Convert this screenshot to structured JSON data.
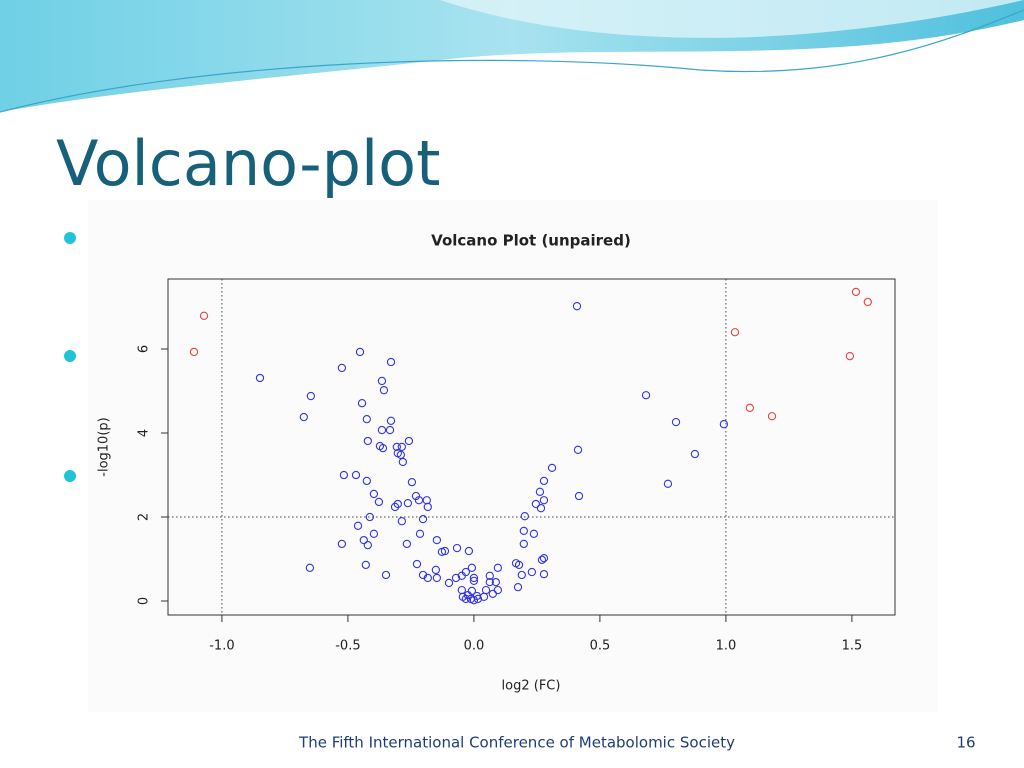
{
  "slide": {
    "title": "Volcano-plot",
    "footer": "The Fifth International Conference of Metabolomic Society",
    "page_number": "16"
  },
  "chart_data": {
    "type": "scatter",
    "title": "Volcano Plot (unpaired)",
    "x_label": "log2 (FC)",
    "y_label": "-log10(p)",
    "xlim": [
      -1.214,
      1.671
    ],
    "ylim": [
      -0.333,
      7.667
    ],
    "xticks": [
      {
        "value": -1,
        "label": "-1.0"
      },
      -0.5,
      {
        "value": 0,
        "label": "0.0"
      },
      0.5,
      {
        "value": 1,
        "label": "1.0"
      },
      1.5
    ],
    "yticks": [
      0,
      2,
      4,
      6
    ],
    "reference_lines": {
      "x": [
        -1,
        1
      ],
      "y": [
        2
      ]
    },
    "series": [
      {
        "color": "#e8413c",
        "x": [
          -1.071,
          -1.111,
          1.516,
          1.563,
          1.036,
          1.492,
          1.095,
          1.183
        ],
        "values": [
          6.79,
          5.93,
          7.36,
          7.12,
          6.4,
          5.83,
          4.6,
          4.4
        ]
      },
      {
        "color": "#3333e6",
        "x": [
          0.409,
          -0.849,
          -0.452,
          -0.329,
          -0.524,
          -0.365,
          -0.357,
          -0.647,
          0.683,
          -0.444,
          -0.675,
          -0.425,
          -0.329,
          0.802,
          0.992,
          -0.365,
          -0.333,
          -0.421,
          -0.258,
          -0.373,
          -0.361,
          -0.306,
          -0.286,
          -0.302,
          -0.29,
          -0.282,
          0.413,
          0.877,
          0.31,
          -0.516,
          -0.468,
          -0.425,
          0.278,
          0.77,
          -0.246,
          -0.397,
          0.262,
          -0.377,
          0.417,
          -0.23,
          -0.218,
          -0.262,
          -0.302,
          -0.313,
          -0.187,
          -0.183,
          0.278,
          0.246,
          0.266,
          -0.413,
          0.202,
          -0.286,
          -0.202,
          -0.46,
          0.238,
          0.198,
          -0.397,
          -0.214,
          -0.147,
          -0.437,
          -0.421,
          -0.266,
          -0.524,
          0.198,
          -0.02,
          -0.127,
          -0.115,
          -0.067,
          0.278,
          0.27,
          0.167,
          0.179,
          -0.429,
          -0.226,
          -0.651,
          -0.008,
          -0.151,
          0.095,
          0.19,
          0.063,
          -0.032,
          0.23,
          0.278,
          -0.202,
          -0.183,
          -0.147,
          -0.349,
          -0.071,
          -0.048,
          0.0,
          0.0,
          -0.099,
          0.087,
          0.063,
          0.175,
          -0.048,
          0.095,
          0.075,
          -0.044,
          -0.032,
          -0.012,
          0.0,
          0.016,
          0.04,
          0.012,
          -0.024,
          -0.008,
          0.048
        ],
        "values": [
          7.02,
          5.31,
          5.93,
          5.69,
          5.55,
          5.24,
          5.02,
          4.88,
          4.9,
          4.71,
          4.38,
          4.33,
          4.29,
          4.26,
          4.21,
          4.07,
          4.07,
          3.81,
          3.81,
          3.69,
          3.64,
          3.67,
          3.67,
          3.52,
          3.48,
          3.31,
          3.6,
          3.5,
          3.17,
          3.0,
          3.0,
          2.86,
          2.86,
          2.79,
          2.83,
          2.55,
          2.6,
          2.36,
          2.5,
          2.5,
          2.4,
          2.33,
          2.31,
          2.24,
          2.4,
          2.24,
          2.4,
          2.31,
          2.21,
          2.0,
          2.02,
          1.9,
          1.95,
          1.79,
          1.6,
          1.67,
          1.6,
          1.6,
          1.45,
          1.45,
          1.33,
          1.36,
          1.36,
          1.36,
          1.19,
          1.17,
          1.19,
          1.26,
          1.02,
          0.98,
          0.9,
          0.86,
          0.86,
          0.88,
          0.79,
          0.79,
          0.74,
          0.79,
          0.62,
          0.6,
          0.69,
          0.69,
          0.64,
          0.62,
          0.55,
          0.55,
          0.62,
          0.55,
          0.6,
          0.55,
          0.48,
          0.43,
          0.45,
          0.45,
          0.33,
          0.26,
          0.26,
          0.17,
          0.1,
          0.05,
          0.05,
          0.02,
          0.05,
          0.1,
          0.12,
          0.14,
          0.24,
          0.26
        ]
      }
    ]
  }
}
